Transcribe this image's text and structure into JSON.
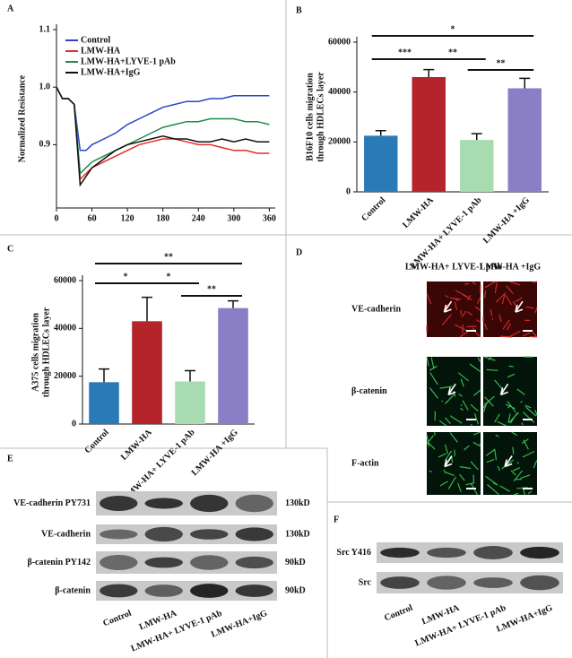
{
  "chart_data": [
    {
      "type": "line",
      "panel": "A",
      "ylabel": "Normalized Resistance",
      "x": [
        0,
        10,
        20,
        30,
        40,
        50,
        60,
        80,
        100,
        120,
        140,
        160,
        180,
        200,
        220,
        240,
        260,
        280,
        300,
        320,
        340,
        360
      ],
      "xlim": [
        0,
        370
      ],
      "xticks": [
        0,
        60,
        120,
        180,
        240,
        300,
        360
      ],
      "ylim": [
        0.79,
        1.1
      ],
      "yticks": [
        0.9,
        {
          "value": 1,
          "label": "1.0"
        },
        1.1
      ],
      "series": [
        {
          "name": "Control",
          "color": "#2747c4",
          "values": [
            1.0,
            0.98,
            0.98,
            0.97,
            0.89,
            0.89,
            0.9,
            0.91,
            0.92,
            0.935,
            0.945,
            0.955,
            0.965,
            0.97,
            0.975,
            0.975,
            0.98,
            0.98,
            0.985,
            0.985,
            0.985,
            0.985
          ]
        },
        {
          "name": "LMW-HA",
          "color": "#e0302a",
          "values": [
            1.0,
            0.98,
            0.98,
            0.97,
            0.84,
            0.85,
            0.86,
            0.87,
            0.88,
            0.89,
            0.9,
            0.905,
            0.91,
            0.91,
            0.905,
            0.9,
            0.9,
            0.895,
            0.89,
            0.89,
            0.885,
            0.885
          ]
        },
        {
          "name": "LMW-HA+LYVE-1 pAb",
          "color": "#1f8a4c",
          "values": [
            1.0,
            0.98,
            0.98,
            0.97,
            0.85,
            0.86,
            0.87,
            0.88,
            0.89,
            0.9,
            0.91,
            0.92,
            0.93,
            0.935,
            0.94,
            0.94,
            0.945,
            0.945,
            0.945,
            0.94,
            0.94,
            0.935
          ]
        },
        {
          "name": "LMW-HA+IgG",
          "color": "#111111",
          "values": [
            1.0,
            0.98,
            0.98,
            0.97,
            0.83,
            0.845,
            0.86,
            0.875,
            0.89,
            0.9,
            0.905,
            0.91,
            0.915,
            0.91,
            0.91,
            0.905,
            0.905,
            0.91,
            0.905,
            0.91,
            0.905,
            0.905
          ]
        }
      ]
    },
    {
      "type": "bar",
      "panel": "B",
      "ylabel": [
        "B16F10 cells migration",
        "through HDLECs layer"
      ],
      "categories": [
        "Control",
        "LMW-HA",
        "LMW-HA+ LYVE-1 pAb",
        "LMW-HA +IgG"
      ],
      "values": [
        22500,
        46000,
        20800,
        41500
      ],
      "errors": [
        2000,
        3000,
        2500,
        4000
      ],
      "colors": [
        "#2a7ab8",
        "#b5232b",
        "#a8dcb0",
        "#8a7fc6"
      ],
      "ylim": [
        0,
        60000
      ],
      "yticks": [
        0,
        20000,
        40000,
        60000
      ],
      "annotations": [
        "***",
        "**",
        "**",
        "*"
      ]
    },
    {
      "type": "bar",
      "panel": "C",
      "ylabel": [
        "A375 cells migration",
        "through HDLECs layer"
      ],
      "categories": [
        "Control",
        "LMW-HA",
        "LMW-HA+ LYVE-1 pAb",
        "LMW-HA +IgG"
      ],
      "values": [
        17500,
        43000,
        17800,
        48500
      ],
      "errors": [
        5500,
        10000,
        4500,
        3000
      ],
      "colors": [
        "#2a7ab8",
        "#b5232b",
        "#a8dcb0",
        "#8a7fc6"
      ],
      "ylim": [
        0,
        60000
      ],
      "yticks": [
        0,
        20000,
        40000,
        60000
      ],
      "annotations": [
        "*",
        "*",
        "**",
        "**"
      ]
    }
  ],
  "panels": {
    "D": {
      "panel": "D",
      "columns": [
        "LMW-HA+ LYVE-1 pAb",
        "LMW-HA +IgG"
      ],
      "rows": [
        "VE-cadherin",
        "β-catenin",
        "F-actin"
      ]
    },
    "E": {
      "panel": "E",
      "rows": [
        "VE-cadherin PY731",
        "VE-cadherin",
        "β-catenin PY142",
        "β-catenin"
      ],
      "sizes": [
        "130kD",
        "130kD",
        "90kD",
        "90kD"
      ],
      "lanes": [
        "Control",
        "LMW-HA",
        "LMW-HA+ LYVE-1 pAb",
        "LMW-HA+IgG"
      ]
    },
    "F": {
      "panel": "F",
      "rows": [
        "Src Y416",
        "Src"
      ],
      "lanes": [
        "Control",
        "LMW-HA",
        "LMW-HA+ LYVE-1 pAb",
        "LMW-HA+IgG"
      ]
    }
  }
}
